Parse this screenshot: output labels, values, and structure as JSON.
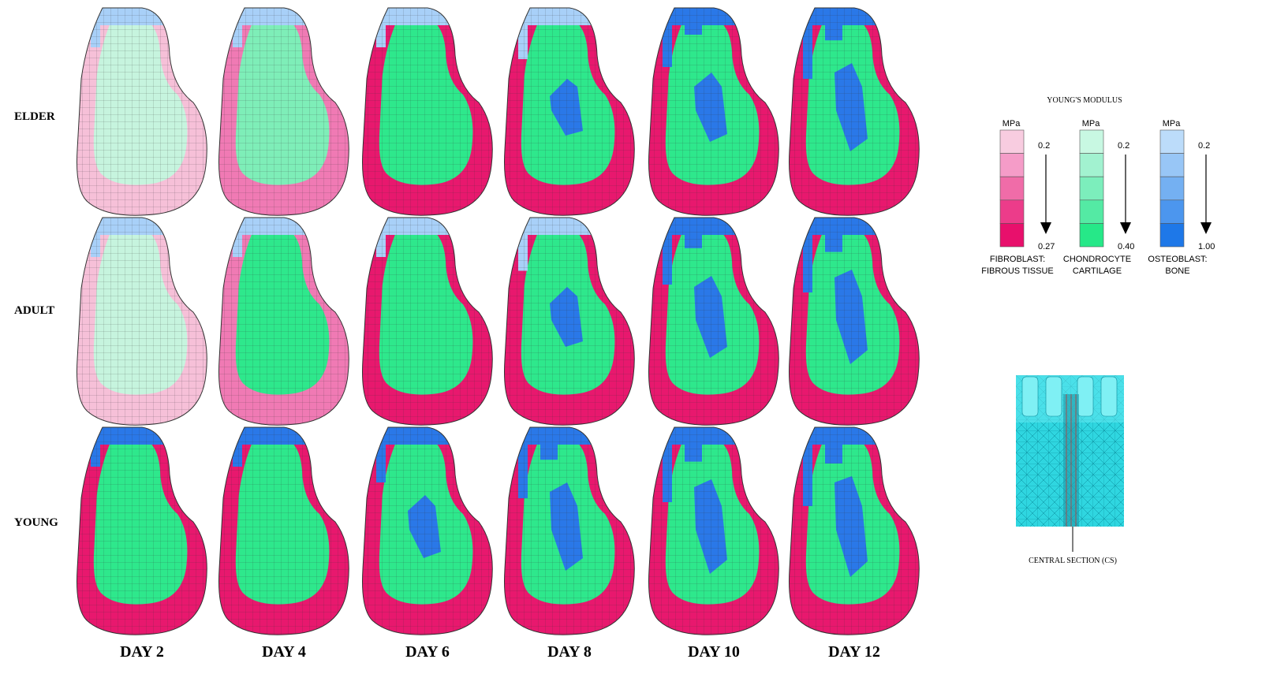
{
  "row_labels": [
    "ELDER",
    "ADULT",
    "YOUNG"
  ],
  "column_labels": [
    "DAY 2",
    "DAY 4",
    "DAY 6",
    "DAY 8",
    "DAY 10",
    "DAY 12"
  ],
  "legend": {
    "title": "YOUNG'S MODULUS",
    "scales": [
      {
        "unit": "MPa",
        "top": "0.2",
        "bottom": "0.27",
        "label": [
          "FIBROBLAST:",
          "FIBROUS TISSUE"
        ]
      },
      {
        "unit": "MPa",
        "top": "0.2",
        "bottom": "0.40",
        "label": [
          "CHONDROCYTE",
          "CARTILAGE"
        ]
      },
      {
        "unit": "MPa",
        "top": "0.2",
        "bottom": "1.00",
        "label": [
          "OSTEOBLAST:",
          "BONE"
        ]
      }
    ]
  },
  "inset": {
    "caption": "CENTRAL SECTION (CS)"
  }
}
